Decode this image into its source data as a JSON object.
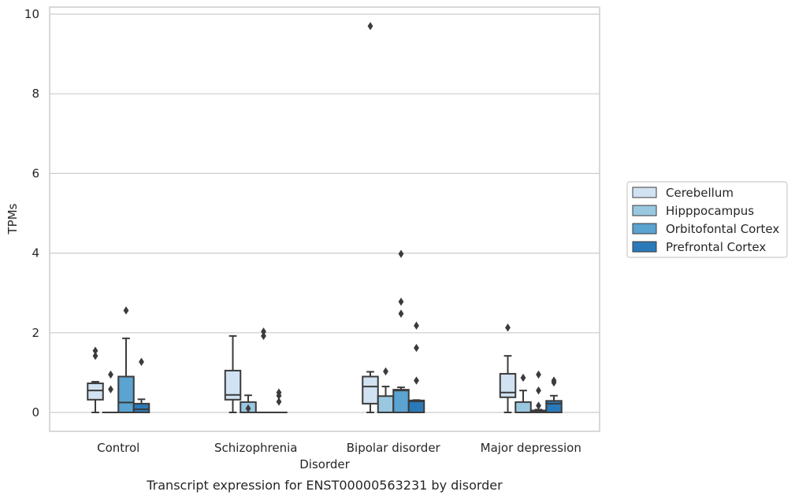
{
  "caption": "Transcript expression for ENST00000563231 by disorder",
  "chart_data": {
    "type": "box",
    "title": "",
    "xlabel": "Disorder",
    "ylabel": "TPMs",
    "ylim": [
      -0.45,
      10.2
    ],
    "yticks": [
      0,
      2,
      4,
      6,
      8,
      10
    ],
    "grid": true,
    "legend_position": "right",
    "categories": [
      "Control",
      "Schizophrenia",
      "Bipolar disorder",
      "Major depression"
    ],
    "series": [
      {
        "name": "Cerebellum",
        "color": "#d1e2f2",
        "boxes": [
          {
            "whislo": 0.0,
            "q1": 0.32,
            "med": 0.55,
            "q3": 0.73,
            "whishi": 0.77,
            "fliers": [
              1.42,
              1.55
            ]
          },
          {
            "whislo": 0.0,
            "q1": 0.32,
            "med": 0.44,
            "q3": 1.05,
            "whishi": 1.92,
            "fliers": []
          },
          {
            "whislo": 0.0,
            "q1": 0.22,
            "med": 0.65,
            "q3": 0.9,
            "whishi": 1.02,
            "fliers": [
              9.7
            ]
          },
          {
            "whislo": 0.0,
            "q1": 0.38,
            "med": 0.5,
            "q3": 0.97,
            "whishi": 1.42,
            "fliers": [
              2.13
            ]
          }
        ]
      },
      {
        "name": "Hipppocampus",
        "color": "#9ac8e0",
        "boxes": [
          {
            "whislo": 0.0,
            "q1": 0.0,
            "med": 0.0,
            "q3": 0.0,
            "whishi": 0.0,
            "fliers": [
              0.58,
              0.95
            ]
          },
          {
            "whislo": 0.0,
            "q1": 0.0,
            "med": 0.0,
            "q3": 0.26,
            "whishi": 0.43,
            "fliers": [
              0.1
            ]
          },
          {
            "whislo": 0.0,
            "q1": 0.0,
            "med": 0.0,
            "q3": 0.41,
            "whishi": 0.65,
            "fliers": [
              1.03
            ]
          },
          {
            "whislo": 0.0,
            "q1": 0.0,
            "med": 0.0,
            "q3": 0.26,
            "whishi": 0.55,
            "fliers": [
              0.87
            ]
          }
        ]
      },
      {
        "name": "Orbitofontal Cortex",
        "color": "#5ba3d0",
        "boxes": [
          {
            "whislo": 0.0,
            "q1": 0.0,
            "med": 0.25,
            "q3": 0.9,
            "whishi": 1.86,
            "fliers": [
              2.56
            ]
          },
          {
            "whislo": 0.0,
            "q1": 0.0,
            "med": 0.0,
            "q3": 0.0,
            "whishi": 0.0,
            "fliers": [
              1.92,
              2.03
            ]
          },
          {
            "whislo": 0.0,
            "q1": 0.0,
            "med": 0.55,
            "q3": 0.57,
            "whishi": 0.63,
            "fliers": [
              2.48,
              2.78,
              3.98
            ]
          },
          {
            "whislo": 0.0,
            "q1": 0.0,
            "med": 0.02,
            "q3": 0.05,
            "whishi": 0.07,
            "fliers": [
              0.17,
              0.55,
              0.95
            ]
          }
        ]
      },
      {
        "name": "Prefrontal Cortex",
        "color": "#2a7ab9",
        "boxes": [
          {
            "whislo": 0.0,
            "q1": 0.0,
            "med": 0.08,
            "q3": 0.22,
            "whishi": 0.33,
            "fliers": [
              1.27
            ]
          },
          {
            "whislo": 0.0,
            "q1": 0.0,
            "med": 0.0,
            "q3": 0.0,
            "whishi": 0.0,
            "fliers": [
              0.27,
              0.42,
              0.5
            ]
          },
          {
            "whislo": 0.0,
            "q1": 0.0,
            "med": 0.28,
            "q3": 0.3,
            "whishi": 0.31,
            "fliers": [
              0.8,
              1.62,
              2.18
            ]
          },
          {
            "whislo": 0.0,
            "q1": 0.0,
            "med": 0.22,
            "q3": 0.29,
            "whishi": 0.42,
            "fliers": [
              0.75,
              0.8
            ]
          }
        ]
      }
    ]
  }
}
